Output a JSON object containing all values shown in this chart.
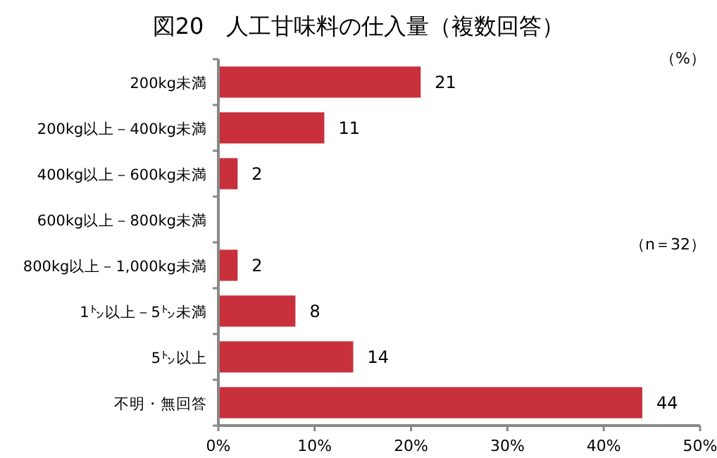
{
  "chart_data": {
    "type": "bar",
    "orientation": "horizontal",
    "title": "図20　人工甘味料の仕入量（複数回答）",
    "categories": [
      "200kg未満",
      "200kg以上－400kg未満",
      "400kg以上－600kg未満",
      "600kg以上－800kg未満",
      "800kg以上－1,000kg未満",
      "1㌧以上－5㌧未満",
      "5㌧以上",
      "不明・無回答"
    ],
    "values": [
      21,
      11,
      2,
      0,
      2,
      8,
      14,
      44
    ],
    "value_labels": [
      "21",
      "11",
      "2",
      null,
      "2",
      "8",
      "14",
      "44"
    ],
    "color": "#c8303c",
    "xlim": [
      0,
      50
    ],
    "xticks": [
      {
        "value": 0,
        "label": "0%"
      },
      {
        "value": 10,
        "label": "10%"
      },
      {
        "value": 20,
        "label": "20%"
      },
      {
        "value": 30,
        "label": "30%"
      },
      {
        "value": 40,
        "label": "40%"
      },
      {
        "value": 50,
        "label": "50%"
      }
    ],
    "annotations": [
      "（%）",
      "（n＝32）"
    ]
  }
}
